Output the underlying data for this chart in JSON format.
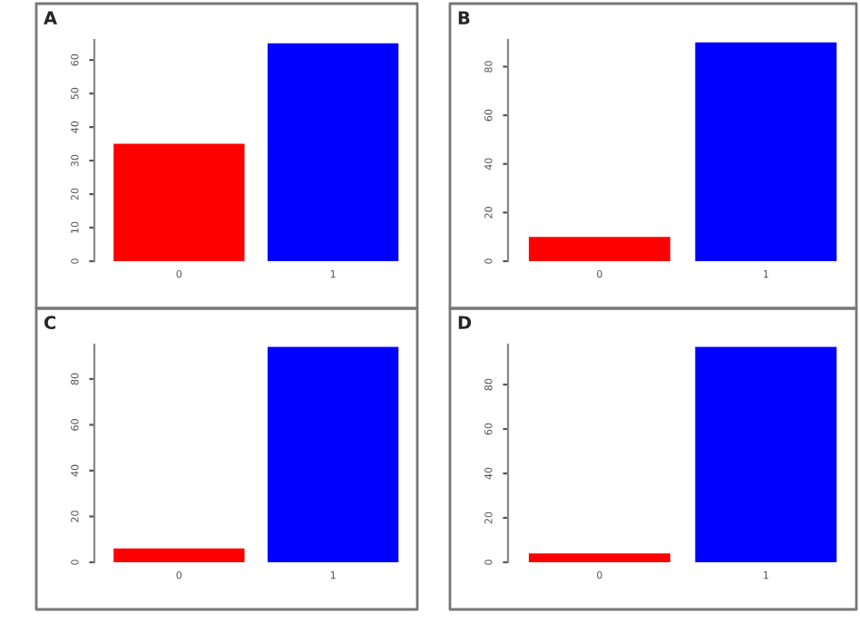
{
  "chart_data": [
    {
      "type": "bar",
      "title": "A",
      "categories": [
        "0",
        "1"
      ],
      "values": [
        35,
        65
      ],
      "colors": [
        "#ff0000",
        "#0000ff"
      ],
      "ylim": [
        0,
        66
      ],
      "yticks": [
        0,
        10,
        20,
        30,
        40,
        50,
        60
      ],
      "grid": false,
      "legend": false
    },
    {
      "type": "bar",
      "title": "B",
      "categories": [
        "0",
        "1"
      ],
      "values": [
        10,
        90
      ],
      "colors": [
        "#ff0000",
        "#0000ff"
      ],
      "ylim": [
        0,
        91
      ],
      "yticks": [
        0,
        20,
        40,
        60,
        80
      ],
      "grid": false,
      "legend": false
    },
    {
      "type": "bar",
      "title": "C",
      "categories": [
        "0",
        "1"
      ],
      "values": [
        6,
        94
      ],
      "colors": [
        "#ff0000",
        "#0000ff"
      ],
      "ylim": [
        0,
        95
      ],
      "yticks": [
        0,
        20,
        40,
        60,
        80
      ],
      "grid": false,
      "legend": false
    },
    {
      "type": "bar",
      "title": "D",
      "categories": [
        "0",
        "1"
      ],
      "values": [
        4,
        97
      ],
      "colors": [
        "#ff0000",
        "#0000ff"
      ],
      "ylim": [
        0,
        98
      ],
      "yticks": [
        0,
        20,
        40,
        60,
        80
      ],
      "grid": false,
      "legend": false
    }
  ]
}
